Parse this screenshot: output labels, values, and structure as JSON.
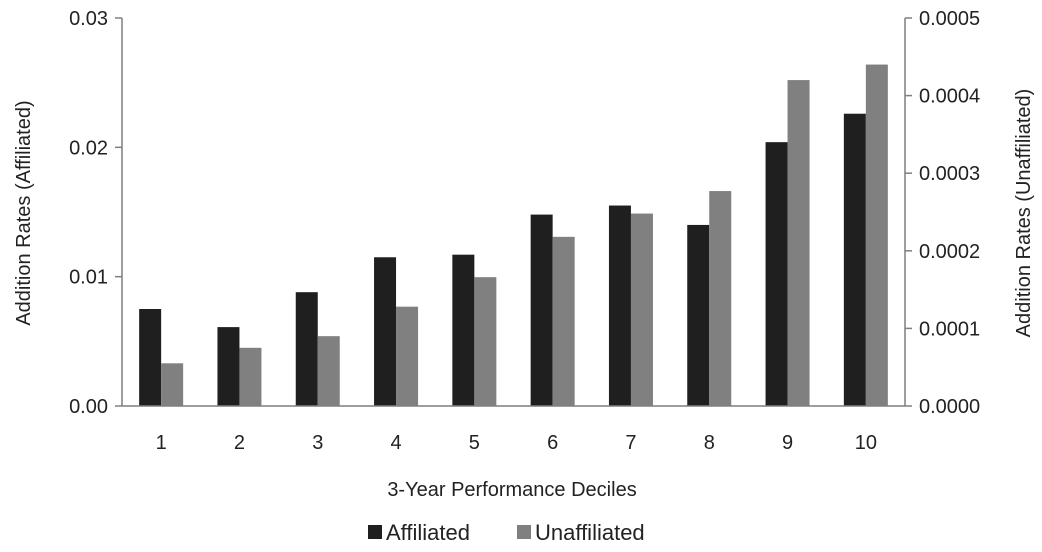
{
  "chart_data": {
    "type": "bar",
    "categories": [
      "1",
      "2",
      "3",
      "4",
      "5",
      "6",
      "7",
      "8",
      "9",
      "10"
    ],
    "series": [
      {
        "name": "Affiliated",
        "axis": "left",
        "color": "#1f1f1f",
        "values": [
          0.0075,
          0.0061,
          0.0088,
          0.0115,
          0.0117,
          0.0148,
          0.0155,
          0.014,
          0.0204,
          0.0226
        ]
      },
      {
        "name": "Unaffiliated",
        "axis": "right",
        "color": "#808080",
        "values": [
          5.5e-05,
          7.5e-05,
          9e-05,
          0.000128,
          0.000166,
          0.000218,
          0.000248,
          0.000277,
          0.00042,
          0.00044
        ]
      }
    ],
    "xlabel": "3-Year Performance Deciles",
    "ylabel_left": "Addition Rates (Affiliated)",
    "ylabel_right": "Addition Rates (Unaffiliated)",
    "ylim_left": [
      0,
      0.03
    ],
    "ylim_right": [
      0,
      0.0005
    ],
    "yticks_left": [
      "0.00",
      "0.01",
      "0.02",
      "0.03"
    ],
    "yticks_right": [
      "0.0000",
      "0.0001",
      "0.0002",
      "0.0003",
      "0.0004",
      "0.0005"
    ],
    "legend_position": "bottom-center",
    "grid": false
  }
}
